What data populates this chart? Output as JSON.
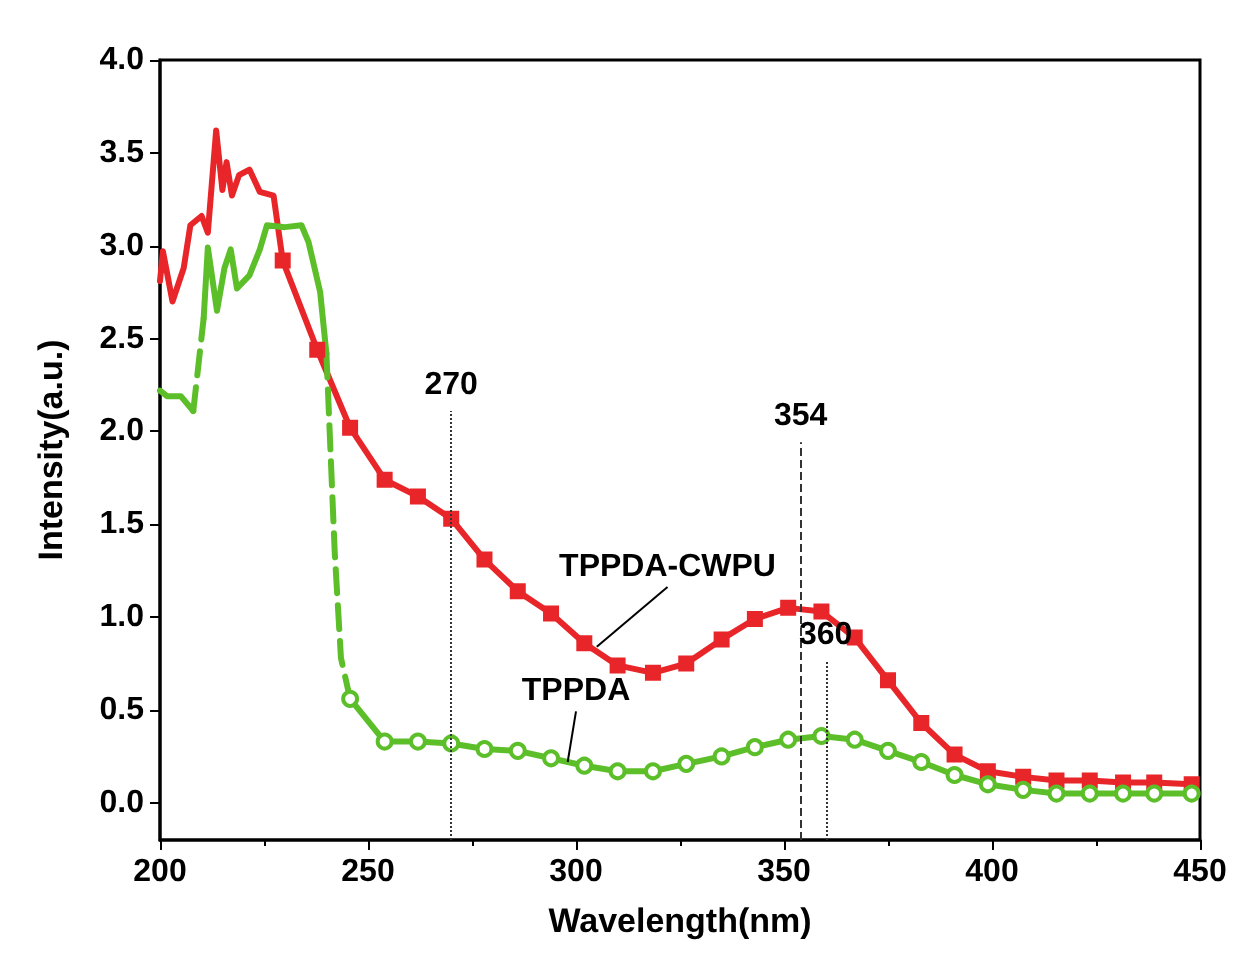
{
  "chart_data": {
    "type": "line",
    "xlabel": "Wavelength(nm)",
    "ylabel": "Intensity(a.u.)",
    "xlim": [
      200,
      450
    ],
    "xticks": [
      200,
      250,
      300,
      350,
      400,
      450
    ],
    "ylim": [
      -0.2,
      4.0
    ],
    "yticks": [
      {
        "value": 0,
        "label": "0.0"
      },
      {
        "value": 0.5,
        "label": "0.5"
      },
      {
        "value": 1,
        "label": "1.0"
      },
      {
        "value": 1.5,
        "label": "1.5"
      },
      {
        "value": 2,
        "label": "2.0"
      },
      {
        "value": 2.5,
        "label": "2.5"
      },
      {
        "value": 3,
        "label": "3.0"
      },
      {
        "value": 3.5,
        "label": "3.5"
      },
      {
        "value": 4,
        "label": "4.0"
      }
    ],
    "grid": false,
    "legend": false,
    "line_style": "solid",
    "series": [
      {
        "color": "#e8262a",
        "marker": "none",
        "x": [
          200,
          200.7,
          203,
          205.7,
          207.3,
          210,
          211.5,
          213.5,
          215,
          216,
          217.3,
          219,
          221.5,
          224,
          227.3,
          229.5
        ],
        "values": [
          2.81,
          2.97,
          2.7,
          2.88,
          3.11,
          3.16,
          3.07,
          3.62,
          3.3,
          3.45,
          3.27,
          3.38,
          3.41,
          3.29,
          3.27,
          2.92
        ]
      },
      {
        "name": "TPPDA-CWPU",
        "color": "#e8262a",
        "marker": "square",
        "x": [
          229.5,
          237.8,
          245.7,
          254,
          262,
          270,
          278,
          286,
          294,
          302,
          310,
          318.5,
          326.5,
          335,
          343,
          351,
          359,
          367,
          375,
          383,
          391,
          399,
          407.5,
          415.5,
          423.5,
          431.5,
          439,
          448
        ],
        "values": [
          2.92,
          2.44,
          2.02,
          1.74,
          1.65,
          1.53,
          1.31,
          1.14,
          1.02,
          0.86,
          0.74,
          0.7,
          0.75,
          0.88,
          0.99,
          1.05,
          1.03,
          0.89,
          0.66,
          0.43,
          0.26,
          0.17,
          0.14,
          0.12,
          0.12,
          0.11,
          0.11,
          0.1
        ]
      },
      {
        "color": "#5cbf2a",
        "marker": "none",
        "x": [
          200,
          201.7,
          205,
          208
        ],
        "values": [
          2.22,
          2.19,
          2.19,
          2.11
        ]
      },
      {
        "color": "#5cbf2a",
        "marker": "none",
        "line_style": "dashed",
        "x": [
          208,
          210.5
        ],
        "values": [
          2.11,
          2.61
        ]
      },
      {
        "color": "#5cbf2a",
        "marker": "none",
        "x": [
          210.5,
          211.5,
          213.7,
          215.5,
          217,
          218.5,
          221.5,
          224,
          225.7,
          230,
          234,
          235.7,
          238.5,
          240
        ],
        "values": [
          2.61,
          2.99,
          2.65,
          2.88,
          2.98,
          2.77,
          2.84,
          2.98,
          3.11,
          3.1,
          3.11,
          3.02,
          2.75,
          2.42
        ]
      },
      {
        "color": "#5cbf2a",
        "marker": "none",
        "line_style": "dashed",
        "x": [
          240,
          242,
          243.5,
          245.7
        ],
        "values": [
          2.42,
          1.35,
          0.78,
          0.56
        ]
      },
      {
        "name": "TPPDA",
        "color": "#5cbf2a",
        "marker": "circle",
        "x": [
          245.7,
          254,
          262,
          270,
          278,
          286,
          294,
          302,
          310,
          318.5,
          326.5,
          335,
          343,
          351,
          359,
          367,
          375,
          383,
          391,
          399,
          407.5,
          415.5,
          423.5,
          431.5,
          439,
          448
        ],
        "values": [
          0.56,
          0.33,
          0.33,
          0.32,
          0.29,
          0.28,
          0.24,
          0.2,
          0.17,
          0.17,
          0.21,
          0.25,
          0.3,
          0.34,
          0.36,
          0.34,
          0.28,
          0.22,
          0.15,
          0.1,
          0.07,
          0.05,
          0.05,
          0.05,
          0.05,
          0.05
        ]
      }
    ],
    "ref_lines": [
      {
        "axis": "x",
        "value": 270,
        "label": "270",
        "line_style": "dotted"
      },
      {
        "axis": "x",
        "value": 354,
        "label": "354",
        "line_style": "dashed"
      },
      {
        "axis": "x",
        "value": 360,
        "label": "360",
        "line_style": "dotted"
      }
    ]
  }
}
